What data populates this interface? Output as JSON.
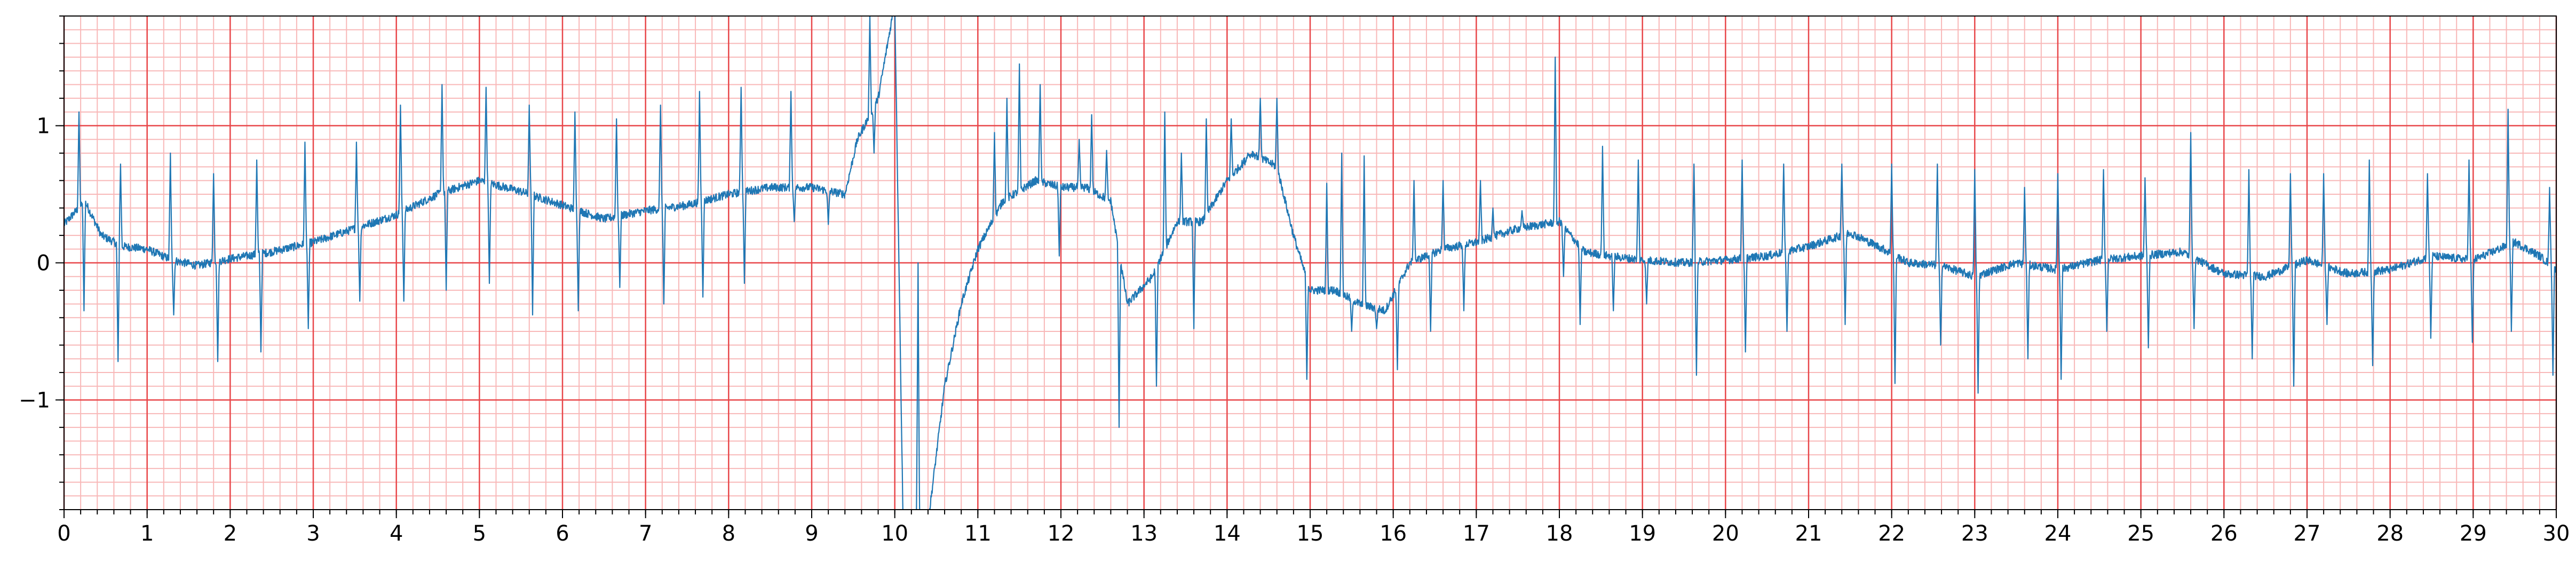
{
  "chart_data": {
    "type": "line",
    "title": "",
    "xlabel": "",
    "ylabel": "",
    "xlim": [
      0,
      30
    ],
    "ylim": [
      -1.8,
      1.8
    ],
    "x_ticks": [
      0,
      1,
      2,
      3,
      4,
      5,
      6,
      7,
      8,
      9,
      10,
      11,
      12,
      13,
      14,
      15,
      16,
      17,
      18,
      19,
      20,
      21,
      22,
      23,
      24,
      25,
      26,
      27,
      28,
      29,
      30
    ],
    "x_tick_labels": [
      "0",
      "1",
      "2",
      "3",
      "4",
      "5",
      "6",
      "7",
      "8",
      "9",
      "10",
      "11",
      "12",
      "13",
      "14",
      "15",
      "16",
      "17",
      "18",
      "19",
      "20",
      "21",
      "22",
      "23",
      "24",
      "25",
      "26",
      "27",
      "28",
      "29",
      "30"
    ],
    "y_ticks": [
      -1,
      0,
      1
    ],
    "y_tick_labels": [
      "−1",
      "0",
      "1"
    ],
    "grid": {
      "major": true,
      "minor": true,
      "major_x_step": 1,
      "minor_x_step": 0.2,
      "major_y_step": 1,
      "minor_y_step": 0.1,
      "major_color": "#e8474a",
      "minor_color": "#f8b8b8"
    },
    "series": [
      {
        "color": "#1f77b4",
        "baseline_anchors": [
          [
            0,
            0.28
          ],
          [
            0.25,
            0.45
          ],
          [
            0.45,
            0.2
          ],
          [
            0.7,
            0.12
          ],
          [
            1.0,
            0.1
          ],
          [
            1.3,
            0.02
          ],
          [
            1.6,
            -0.02
          ],
          [
            2.0,
            0.03
          ],
          [
            2.5,
            0.08
          ],
          [
            3.0,
            0.15
          ],
          [
            3.5,
            0.25
          ],
          [
            4.0,
            0.35
          ],
          [
            4.5,
            0.5
          ],
          [
            5.0,
            0.6
          ],
          [
            5.5,
            0.52
          ],
          [
            6.0,
            0.42
          ],
          [
            6.5,
            0.32
          ],
          [
            7.0,
            0.38
          ],
          [
            7.5,
            0.42
          ],
          [
            8.0,
            0.5
          ],
          [
            8.5,
            0.55
          ],
          [
            9.0,
            0.55
          ],
          [
            9.4,
            0.5
          ],
          [
            9.55,
            0.9
          ],
          [
            9.8,
            1.2
          ],
          [
            10.0,
            1.9
          ],
          [
            10.1,
            -1.9
          ],
          [
            10.4,
            -1.9
          ],
          [
            10.6,
            -0.9
          ],
          [
            10.8,
            -0.3
          ],
          [
            11.0,
            0.1
          ],
          [
            11.3,
            0.45
          ],
          [
            11.7,
            0.6
          ],
          [
            12.0,
            0.55
          ],
          [
            12.3,
            0.55
          ],
          [
            12.6,
            0.45
          ],
          [
            12.8,
            -0.3
          ],
          [
            13.1,
            -0.1
          ],
          [
            13.4,
            0.3
          ],
          [
            13.7,
            0.3
          ],
          [
            14.0,
            0.6
          ],
          [
            14.3,
            0.8
          ],
          [
            14.6,
            0.7
          ],
          [
            14.8,
            0.2
          ],
          [
            15.0,
            -0.2
          ],
          [
            15.3,
            -0.2
          ],
          [
            15.6,
            -0.3
          ],
          [
            15.9,
            -0.35
          ],
          [
            16.2,
            0.0
          ],
          [
            16.6,
            0.1
          ],
          [
            17.0,
            0.15
          ],
          [
            17.5,
            0.25
          ],
          [
            18.0,
            0.3
          ],
          [
            18.3,
            0.08
          ],
          [
            18.6,
            0.05
          ],
          [
            19.0,
            0.02
          ],
          [
            19.5,
            0.0
          ],
          [
            20.0,
            0.02
          ],
          [
            20.5,
            0.05
          ],
          [
            21.0,
            0.12
          ],
          [
            21.5,
            0.22
          ],
          [
            21.9,
            0.1
          ],
          [
            22.2,
            0.0
          ],
          [
            22.6,
            -0.02
          ],
          [
            23.0,
            -0.1
          ],
          [
            23.5,
            0.0
          ],
          [
            24.0,
            -0.05
          ],
          [
            24.5,
            0.02
          ],
          [
            25.0,
            0.05
          ],
          [
            25.5,
            0.08
          ],
          [
            26.0,
            -0.08
          ],
          [
            26.5,
            -0.1
          ],
          [
            27.0,
            0.02
          ],
          [
            27.5,
            -0.08
          ],
          [
            28.0,
            -0.05
          ],
          [
            28.5,
            0.05
          ],
          [
            29.0,
            0.02
          ],
          [
            29.5,
            0.15
          ],
          [
            29.8,
            0.05
          ],
          [
            30.0,
            -0.05
          ]
        ],
        "spikes": [
          [
            0.18,
            1.1
          ],
          [
            0.24,
            -0.35
          ],
          [
            0.65,
            -0.72
          ],
          [
            0.68,
            0.72
          ],
          [
            1.28,
            0.8
          ],
          [
            1.32,
            -0.38
          ],
          [
            1.8,
            0.65
          ],
          [
            1.85,
            -0.72
          ],
          [
            2.32,
            0.75
          ],
          [
            2.37,
            -0.65
          ],
          [
            2.9,
            0.88
          ],
          [
            2.94,
            -0.48
          ],
          [
            3.52,
            0.88
          ],
          [
            3.56,
            -0.28
          ],
          [
            4.05,
            1.15
          ],
          [
            4.09,
            -0.28
          ],
          [
            4.55,
            1.3
          ],
          [
            4.6,
            -0.2
          ],
          [
            5.08,
            1.28
          ],
          [
            5.12,
            -0.15
          ],
          [
            5.6,
            1.15
          ],
          [
            5.64,
            -0.38
          ],
          [
            6.15,
            1.1
          ],
          [
            6.19,
            -0.35
          ],
          [
            6.65,
            1.05
          ],
          [
            6.69,
            -0.18
          ],
          [
            7.18,
            1.15
          ],
          [
            7.22,
            -0.3
          ],
          [
            7.65,
            1.25
          ],
          [
            7.69,
            -0.25
          ],
          [
            8.15,
            1.28
          ],
          [
            8.19,
            -0.15
          ],
          [
            8.75,
            1.25
          ],
          [
            8.79,
            0.3
          ],
          [
            9.2,
            0.28
          ],
          [
            9.7,
            1.8
          ],
          [
            9.75,
            0.8
          ],
          [
            10.28,
            0.0
          ],
          [
            11.2,
            0.95
          ],
          [
            11.35,
            1.2
          ],
          [
            11.5,
            1.45
          ],
          [
            11.75,
            1.3
          ],
          [
            11.98,
            0.05
          ],
          [
            12.22,
            0.9
          ],
          [
            12.37,
            1.08
          ],
          [
            12.55,
            0.82
          ],
          [
            12.7,
            -1.2
          ],
          [
            13.15,
            -0.9
          ],
          [
            13.25,
            1.1
          ],
          [
            13.45,
            0.8
          ],
          [
            13.6,
            -0.48
          ],
          [
            13.75,
            1.05
          ],
          [
            14.05,
            1.05
          ],
          [
            14.25,
            0.8
          ],
          [
            14.4,
            1.2
          ],
          [
            14.6,
            1.2
          ],
          [
            14.96,
            -0.85
          ],
          [
            15.2,
            0.58
          ],
          [
            15.38,
            0.8
          ],
          [
            15.5,
            -0.5
          ],
          [
            15.65,
            0.78
          ],
          [
            15.8,
            -0.48
          ],
          [
            16.05,
            -0.78
          ],
          [
            16.25,
            0.6
          ],
          [
            16.45,
            -0.5
          ],
          [
            16.6,
            0.6
          ],
          [
            16.85,
            -0.35
          ],
          [
            17.05,
            0.6
          ],
          [
            17.2,
            0.4
          ],
          [
            17.55,
            0.38
          ],
          [
            17.95,
            1.5
          ],
          [
            18.05,
            -0.1
          ],
          [
            18.25,
            -0.45
          ],
          [
            18.52,
            0.85
          ],
          [
            18.65,
            -0.35
          ],
          [
            18.95,
            0.75
          ],
          [
            19.05,
            -0.3
          ],
          [
            19.62,
            0.72
          ],
          [
            19.65,
            -0.82
          ],
          [
            20.2,
            0.75
          ],
          [
            20.24,
            -0.65
          ],
          [
            20.7,
            0.72
          ],
          [
            20.74,
            -0.5
          ],
          [
            21.4,
            0.72
          ],
          [
            21.44,
            -0.45
          ],
          [
            22.0,
            0.72
          ],
          [
            22.04,
            -0.88
          ],
          [
            22.55,
            0.72
          ],
          [
            22.59,
            -0.6
          ],
          [
            23.0,
            0.68
          ],
          [
            23.04,
            -0.95
          ],
          [
            23.6,
            0.55
          ],
          [
            23.64,
            -0.7
          ],
          [
            24.0,
            0.65
          ],
          [
            24.04,
            -0.85
          ],
          [
            24.55,
            0.68
          ],
          [
            24.59,
            -0.5
          ],
          [
            25.05,
            0.62
          ],
          [
            25.09,
            -0.62
          ],
          [
            25.6,
            0.95
          ],
          [
            25.64,
            -0.48
          ],
          [
            26.3,
            0.68
          ],
          [
            26.34,
            -0.7
          ],
          [
            26.8,
            0.65
          ],
          [
            26.84,
            -0.9
          ],
          [
            27.2,
            0.65
          ],
          [
            27.24,
            -0.45
          ],
          [
            27.75,
            0.75
          ],
          [
            27.79,
            -0.75
          ],
          [
            28.45,
            0.65
          ],
          [
            28.49,
            -0.55
          ],
          [
            28.95,
            0.75
          ],
          [
            28.99,
            -0.58
          ],
          [
            29.42,
            1.12
          ],
          [
            29.46,
            -0.5
          ],
          [
            29.92,
            0.55
          ],
          [
            29.96,
            -0.82
          ]
        ],
        "noise_amplitude": 0.03
      }
    ]
  }
}
